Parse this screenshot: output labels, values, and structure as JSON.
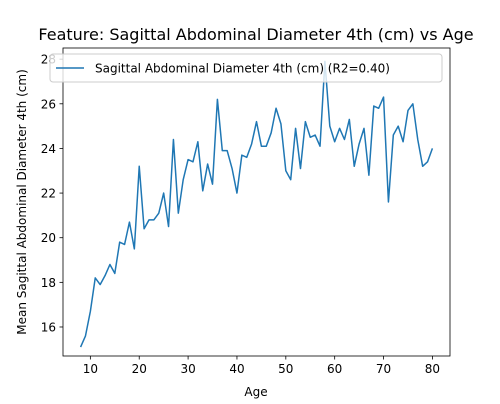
{
  "chart_data": {
    "type": "line",
    "title": "Feature: Sagittal Abdominal Diameter 4th (cm) vs Age",
    "xlabel": "Age",
    "ylabel": "Mean Sagittal Abdominal Diameter 4th (cm)",
    "xlim": [
      4.4,
      83.6
    ],
    "ylim": [
      14.7,
      28.5
    ],
    "xticks": [
      10,
      20,
      30,
      40,
      50,
      60,
      70,
      80
    ],
    "yticks": [
      16,
      18,
      20,
      22,
      24,
      26,
      28
    ],
    "grid": false,
    "legend_position": "top",
    "series": [
      {
        "name": "Sagittal Abdominal Diameter 4th (cm) (R2=0.40)",
        "color": "#1f77b4",
        "x": [
          8,
          9,
          10,
          11,
          12,
          13,
          14,
          15,
          16,
          17,
          18,
          19,
          20,
          21,
          22,
          23,
          24,
          25,
          26,
          27,
          28,
          29,
          30,
          31,
          32,
          33,
          34,
          35,
          36,
          37,
          38,
          39,
          40,
          41,
          42,
          43,
          44,
          45,
          46,
          47,
          48,
          49,
          50,
          51,
          52,
          53,
          54,
          55,
          56,
          57,
          58,
          59,
          60,
          61,
          62,
          63,
          64,
          65,
          66,
          67,
          68,
          69,
          70,
          71,
          72,
          73,
          74,
          75,
          76,
          77,
          78,
          79,
          80
        ],
        "y": [
          15.1,
          15.6,
          16.7,
          18.2,
          17.9,
          18.3,
          18.8,
          18.4,
          19.8,
          19.7,
          20.7,
          19.5,
          23.2,
          20.4,
          20.8,
          20.8,
          21.1,
          22.0,
          20.5,
          24.4,
          21.1,
          22.6,
          23.5,
          23.4,
          24.3,
          22.1,
          23.3,
          22.4,
          26.2,
          23.9,
          23.9,
          23.1,
          22.0,
          23.7,
          23.6,
          24.2,
          25.2,
          24.1,
          24.1,
          24.7,
          25.8,
          25.1,
          23.0,
          22.6,
          24.9,
          23.1,
          25.2,
          24.5,
          24.6,
          24.1,
          27.9,
          25.0,
          24.3,
          24.9,
          24.4,
          25.3,
          23.2,
          24.2,
          24.9,
          22.8,
          25.9,
          25.8,
          26.3,
          21.6,
          24.6,
          25.0,
          24.3,
          25.7,
          26.0,
          24.4,
          23.2,
          23.4,
          24.0
        ]
      }
    ]
  }
}
